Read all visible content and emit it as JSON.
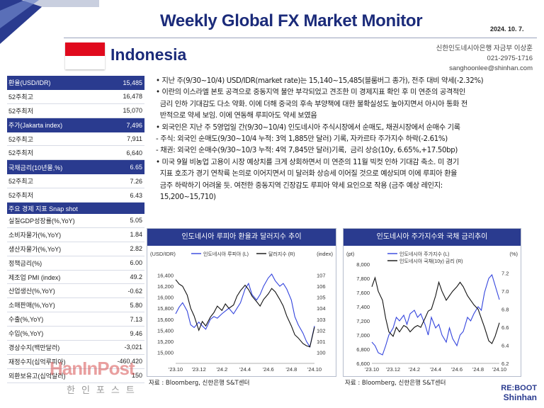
{
  "header": {
    "title": "Weekly Global FX Market Monitor",
    "date": "2024. 10. 7.",
    "country": "Indonesia",
    "contact": [
      "신한인도네시아은행 자금부 이상훈",
      "021-2975-1716",
      "sanghoonlee@shinhan.com"
    ]
  },
  "table": [
    {
      "label": "환율(USD/IDR)",
      "value": "15,485",
      "header": true
    },
    {
      "label": "52주최고",
      "value": "16,478"
    },
    {
      "label": "52주최저",
      "value": "15,070"
    },
    {
      "label": "주가(Jakarta index)",
      "value": "7,496",
      "header": true
    },
    {
      "label": "52주최고",
      "value": "7,911"
    },
    {
      "label": "52주최저",
      "value": "6,640"
    },
    {
      "label": "국채금리(10년물,%)",
      "value": "6.65",
      "header": true
    },
    {
      "label": "52주최고",
      "value": "7.26"
    },
    {
      "label": "52주최저",
      "value": "6.43"
    },
    {
      "label": "주요 경제 지표 Snap shot",
      "value": "",
      "header": true,
      "short": true
    },
    {
      "label": "실질GDP성장률(%,YoY)",
      "value": "5.05"
    },
    {
      "label": "소비자물가(%,YoY)",
      "value": "1.84"
    },
    {
      "label": "생산자물가(%,YoY)",
      "value": "2.82"
    },
    {
      "label": "정책금리(%)",
      "value": "6.00"
    },
    {
      "label": "제조업 PMI (index)",
      "value": "49.2"
    },
    {
      "label": "산업생산(%,YoY)",
      "value": "-0.62"
    },
    {
      "label": "소매판매(%,YoY)",
      "value": "5.80"
    },
    {
      "label": "수출(%,YoY)",
      "value": "7.13"
    },
    {
      "label": "수입(%,YoY)",
      "value": "9.46"
    },
    {
      "label": "경상수지(백만달러)",
      "value": "-3,021"
    },
    {
      "label": "재정수지(십억루피아)",
      "value": "-460,420"
    },
    {
      "label": "외환보유고(십억달러)",
      "value": "150"
    }
  ],
  "bullets": [
    "• 지난 주(9/30~10/4) USD/IDR(market rate)는 15,140~15,485(블룸버그 종가), 전주 대비 약세(-2.32%)",
    "• 이란의 이스라엘 본토 공격으로 중동지역 불안 부각되었고 견조한 미 경제지표 확인 후 미 연준의 공격적인",
    "  금리 인하 기대감도 다소 약화. 이에 더해 중국의 후속 부양책에 대한 불확실성도 높아지면서 아시아 통화 전",
    "  반적으로 약세 보임. 이에 연동해 루피아도 약세 보였음",
    "• 외국인은 지난 주 5영업일 간(9/30~10/4) 인도네시아 주식시장에서 순매도, 채권시장에서 순매수 기록",
    "- 주식: 외국인 순매도(9/30~10/4 누적: 3억 1,885만 달러) 기록, 자카르타 주가지수 하락(-2.61%)",
    "- 채권: 외국인 순매수(9/30~10/3 누적: 4억 7,845만 달러)기록,  금리 상승(10y, 6.65%,+17.50bp)",
    "• 미국 9월 비농업 고용이 시장 예상치를 크게 상회하면서 미 연준의 11월 빅컷 인하 기대감 축소. 미 경기",
    "  지표 호조가 경기 연착륙 논의로 이어지면서 미 달러화 상승세 이어질 것으로 예상되며 이에 루피아 환율",
    "  금주 하락하기 어려울 듯. 여전한 중동지역 긴장감도 루피아 약세 요인으로 작용 (금주 예상 레인지:",
    "  15,200~15,710)"
  ],
  "charts": [
    {
      "title": "인도네시아 루피아 환율과 달러지수 추이",
      "source": "자료 : Bloomberg, 신한은행 S&T센터",
      "left_axis_label": "(USD/IDR)",
      "right_axis_label": "(index)",
      "legend": [
        "인도네시아 루피아 (L)",
        "달러지수 (R)"
      ]
    },
    {
      "title": "인도네시아 주가지수와 국채 금리추이",
      "source": "자료 : Bloomberg, 신한은행 S&T센터",
      "left_axis_label": "(pt)",
      "right_axis_label": "(%)",
      "legend": [
        "인도네시아 주가지수 (L)",
        "인도네시아 국채(10y) 금리 (R)"
      ]
    }
  ],
  "chart_data": [
    {
      "type": "line",
      "title": "인도네시아 루피아 환율과 달러지수 추이",
      "xlabel": "",
      "ylabel": "(USD/IDR)",
      "y2label": "(index)",
      "x_ticks": [
        "'23.10",
        "'23.12",
        "'24.2",
        "'24.4",
        "'24.6",
        "'24.8",
        "'24.10"
      ],
      "ylim": [
        14800,
        16600
      ],
      "y_ticks": [
        15000,
        15200,
        15400,
        15600,
        15800,
        16000,
        16200,
        16400
      ],
      "y2lim": [
        99,
        108
      ],
      "y2_ticks": [
        100,
        101,
        102,
        103,
        104,
        105,
        106,
        107
      ],
      "series": [
        {
          "name": "인도네시아 루피아 (L)",
          "axis": "left",
          "color": "#3344dd",
          "x": [
            0,
            0.3,
            0.6,
            1,
            1.3,
            1.6,
            2,
            2.3,
            2.6,
            3,
            3.3,
            3.6,
            4,
            4.3,
            4.6,
            5,
            5.3,
            5.6,
            6,
            6.3,
            6.6,
            7,
            7.3,
            7.6,
            8,
            8.3,
            8.6,
            9,
            9.3,
            9.6,
            10,
            10.3,
            10.6,
            11,
            11.3,
            11.6,
            12
          ],
          "values": [
            15700,
            15820,
            15900,
            15750,
            15500,
            15450,
            15550,
            15480,
            15420,
            15600,
            15650,
            15620,
            15700,
            15750,
            15800,
            15700,
            15800,
            15900,
            16150,
            16250,
            16050,
            15950,
            16050,
            16200,
            16350,
            16420,
            16300,
            16200,
            16250,
            16150,
            15950,
            15650,
            15500,
            15350,
            15200,
            15100,
            15480
          ]
        },
        {
          "name": "달러지수 (R)",
          "axis": "right",
          "color": "#111111",
          "x": [
            0,
            0.3,
            0.6,
            1,
            1.3,
            1.6,
            2,
            2.3,
            2.6,
            3,
            3.3,
            3.6,
            4,
            4.3,
            4.6,
            5,
            5.3,
            5.6,
            6,
            6.3,
            6.6,
            7,
            7.3,
            7.6,
            8,
            8.3,
            8.6,
            9,
            9.3,
            9.6,
            10,
            10.3,
            10.6,
            11,
            11.3,
            11.6,
            12
          ],
          "values": [
            106.6,
            106.2,
            106.0,
            105.2,
            104.0,
            103.3,
            102.0,
            102.8,
            102.4,
            103.2,
            103.6,
            104.2,
            103.8,
            104.4,
            104.0,
            104.3,
            105.1,
            105.6,
            106.1,
            105.7,
            105.1,
            104.6,
            104.2,
            104.8,
            105.3,
            105.8,
            105.5,
            104.8,
            104.2,
            103.3,
            102.4,
            101.6,
            101.3,
            100.8,
            100.6,
            100.5,
            102.3
          ]
        }
      ]
    },
    {
      "type": "line",
      "title": "인도네시아 주가지수와 국채 금리추이",
      "xlabel": "",
      "ylabel": "(pt)",
      "y2label": "(%)",
      "x_ticks": [
        "'23.10",
        "'23.12",
        "'24.2",
        "'24.4",
        "'24.6",
        "'24.8",
        "'24.10"
      ],
      "ylim": [
        6600,
        8000
      ],
      "y_ticks": [
        6600,
        6800,
        7000,
        7200,
        7400,
        7600,
        7800,
        8000
      ],
      "y2lim": [
        6.2,
        7.3
      ],
      "y2_ticks": [
        6.2,
        6.4,
        6.6,
        6.8,
        7.0,
        7.2
      ],
      "series": [
        {
          "name": "인도네시아 주가지수 (L)",
          "axis": "left",
          "color": "#3344dd",
          "x": [
            0,
            0.3,
            0.6,
            1,
            1.3,
            1.6,
            2,
            2.3,
            2.6,
            3,
            3.3,
            3.6,
            4,
            4.3,
            4.6,
            5,
            5.3,
            5.6,
            6,
            6.3,
            6.6,
            7,
            7.3,
            7.6,
            8,
            8.3,
            8.6,
            9,
            9.3,
            9.6,
            10,
            10.3,
            10.6,
            11,
            11.3,
            11.6,
            12
          ],
          "values": [
            6900,
            6850,
            6750,
            6720,
            6850,
            7000,
            7100,
            7250,
            7200,
            7280,
            7150,
            7300,
            7350,
            7250,
            7300,
            7150,
            7000,
            7250,
            7100,
            7150,
            7000,
            6900,
            7100,
            6950,
            6850,
            7000,
            7050,
            7250,
            7200,
            7300,
            7400,
            7350,
            7600,
            7800,
            7850,
            7700,
            7500
          ]
        },
        {
          "name": "인도네시아 국채(10y) 금리 (R)",
          "axis": "right",
          "color": "#111111",
          "x": [
            0,
            0.3,
            0.6,
            1,
            1.3,
            1.6,
            2,
            2.3,
            2.6,
            3,
            3.3,
            3.6,
            4,
            4.3,
            4.6,
            5,
            5.3,
            5.6,
            6,
            6.3,
            6.6,
            7,
            7.3,
            7.6,
            8,
            8.3,
            8.6,
            9,
            9.3,
            9.6,
            10,
            10.3,
            10.6,
            11,
            11.3,
            11.6,
            12
          ],
          "values": [
            7.05,
            7.15,
            7.0,
            6.9,
            6.7,
            6.55,
            6.5,
            6.6,
            6.55,
            6.62,
            6.6,
            6.55,
            6.6,
            6.62,
            6.6,
            6.7,
            6.78,
            6.8,
            6.95,
            7.1,
            7.0,
            6.9,
            6.95,
            7.0,
            7.05,
            7.1,
            7.05,
            6.95,
            6.9,
            6.85,
            6.8,
            6.7,
            6.6,
            6.45,
            6.42,
            6.5,
            6.65
          ]
        }
      ]
    }
  ],
  "footer": {
    "watermark": "HanInPost",
    "watermark_sub": "한인포스트",
    "brand_top": "RE:BOOT",
    "brand_bottom": "Shinhan"
  },
  "colors": {
    "navy": "#2a3b8f",
    "title": "#1b2b7a",
    "flag_red": "#e00a1d",
    "line_blue": "#3344dd",
    "line_black": "#111111"
  }
}
